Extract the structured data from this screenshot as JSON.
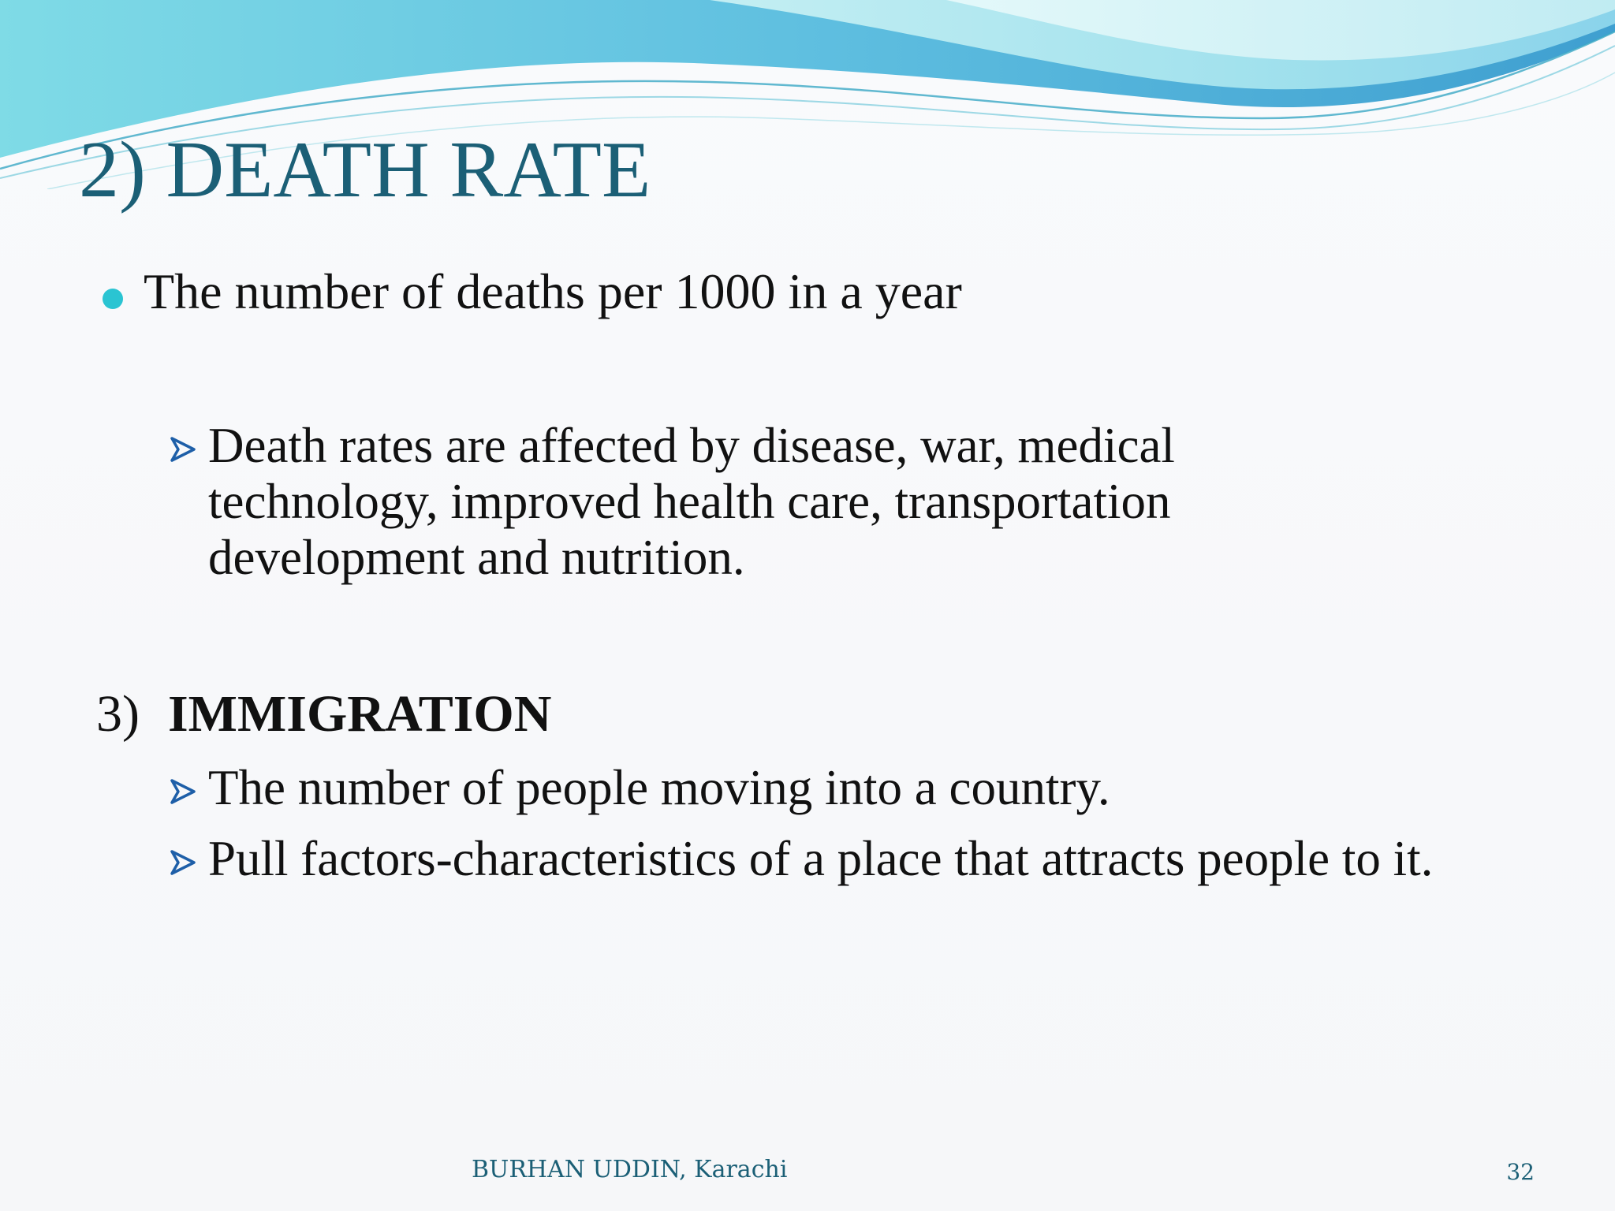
{
  "slide": {
    "title": "2)  DEATH RATE",
    "bullet": "The number of deaths per 1000 in a year",
    "death_rate_detail": "Death rates are affected by disease, war, medical technology, improved health care, transportation development and nutrition.",
    "section": {
      "number": "3)",
      "label": "IMMIGRATION"
    },
    "immigration_points": [
      "The number of people moving into a country.",
      "Pull factors-characteristics of a place that attracts people to it."
    ]
  },
  "footer": {
    "author": "BURHAN UDDIN, Karachi",
    "page": "32"
  },
  "colors": {
    "title": "#1b5f76",
    "bullet_dot": "#2ac4d2",
    "arrow": "#1e5fa8",
    "wave_light": "#9fe2ea",
    "wave_mid": "#6cc7e0",
    "wave_dark": "#3fa1cc"
  },
  "icons": {
    "bullet": "dot-bullet-icon",
    "sub_bullet": "arrow-bullet-icon"
  }
}
